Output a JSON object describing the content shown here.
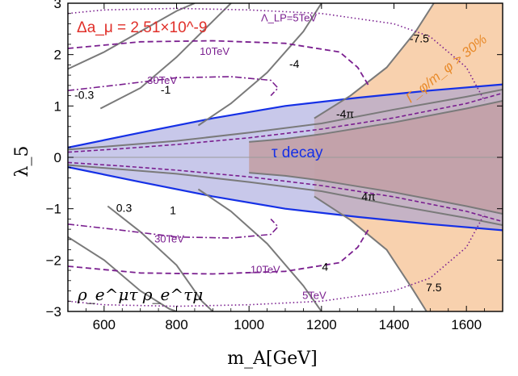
{
  "chart_data": {
    "type": "line",
    "title": "",
    "xlabel": "m_A[GeV]",
    "ylabel": "λ_5",
    "xlim": [
      500,
      1700
    ],
    "ylim": [
      -3,
      3
    ],
    "x_ticks": [
      600,
      800,
      1000,
      1200,
      1400,
      1600
    ],
    "y_ticks": [
      -3,
      -2,
      -1,
      0,
      1,
      2,
      3
    ],
    "grid": false,
    "annotations": {
      "delta_a": "Δa_μ = 2.51×10^-9",
      "width_bound": "Γ_φ/m_φ > 30%",
      "tau_decay": "τ decay",
      "couplings": "ρ_e^μτ  ρ_e^τμ"
    },
    "colors": {
      "tau_band": "#9a9ad8",
      "width_region": "#f7c9a0",
      "overlap": "#c2a0a6",
      "tau_edge": "#1530e6",
      "gray_contour": "#7a7a7a",
      "lp_contour": "#7a1f8f",
      "red_label": "#e0302a",
      "orange_label": "#e88a2a"
    },
    "contour_labels": [
      {
        "text": "-0.3",
        "x": 545,
        "y": 1.2
      },
      {
        "text": "-1",
        "x": 770,
        "y": 1.3
      },
      {
        "text": "-4",
        "x": 1125,
        "y": 1.8
      },
      {
        "text": "-7.5",
        "x": 1470,
        "y": 2.3
      },
      {
        "text": "-4π",
        "x": 1265,
        "y": 0.83
      },
      {
        "text": "0.3",
        "x": 655,
        "y": -1.0
      },
      {
        "text": "1",
        "x": 790,
        "y": -1.05
      },
      {
        "text": "4",
        "x": 1210,
        "y": -2.15
      },
      {
        "text": "7.5",
        "x": 1510,
        "y": -2.55
      },
      {
        "text": "4π",
        "x": 1330,
        "y": -0.78
      },
      {
        "text": "Λ_LP=5TeV",
        "x": 1110,
        "y": 2.7
      },
      {
        "text": "10TeV",
        "x": 905,
        "y": 2.05
      },
      {
        "text": "30TeV",
        "x": 760,
        "y": 1.48
      },
      {
        "text": "30TeV",
        "x": 780,
        "y": -1.6
      },
      {
        "text": "10TeV",
        "x": 1045,
        "y": -2.2
      },
      {
        "text": "5TeV",
        "x": 1180,
        "y": -2.7
      }
    ],
    "series": [
      {
        "x": [
          500,
          700,
          900,
          1100,
          1300,
          1500,
          1700
        ],
        "y": [
          0.19,
          0.48,
          0.76,
          1.0,
          1.16,
          1.3,
          1.42
        ]
      },
      {
        "x": [
          500,
          700,
          900,
          1100,
          1300,
          1500,
          1700
        ],
        "y": [
          -0.19,
          -0.48,
          -0.76,
          -1.0,
          -1.16,
          -1.3,
          -1.42
        ]
      },
      {
        "x": [
          500,
          800,
          1000,
          1200,
          1400,
          1600,
          1700
        ],
        "y": [
          0.15,
          0.32,
          0.48,
          0.66,
          0.93,
          1.18,
          1.32
        ]
      },
      {
        "x": [
          500,
          800,
          1000,
          1200,
          1400,
          1600,
          1700
        ],
        "y": [
          -0.15,
          -0.32,
          -0.48,
          -0.66,
          -0.93,
          -1.18,
          -1.32
        ]
      },
      {
        "x": [
          500,
          600,
          700,
          800,
          850
        ],
        "y": [
          1.72,
          2.05,
          2.45,
          2.85,
          3.0
        ]
      },
      {
        "x": [
          590,
          700,
          800,
          900,
          950
        ],
        "y": [
          0.95,
          1.35,
          1.95,
          2.65,
          3.0
        ]
      },
      {
        "x": [
          860,
          950,
          1050,
          1150,
          1200
        ],
        "y": [
          0.62,
          1.05,
          1.65,
          2.45,
          3.0
        ]
      },
      {
        "x": [
          1180,
          1280,
          1380,
          1460,
          1510
        ],
        "y": [
          0.76,
          1.2,
          1.75,
          2.45,
          3.0
        ]
      },
      {
        "x": [
          500,
          600,
          700,
          780,
          800
        ],
        "y": [
          -1.55,
          -2.0,
          -2.6,
          -2.95,
          -3.0
        ]
      },
      {
        "x": [
          610,
          700,
          800,
          870,
          900
        ],
        "y": [
          -0.95,
          -1.45,
          -2.1,
          -2.8,
          -3.0
        ]
      },
      {
        "x": [
          860,
          950,
          1050,
          1150,
          1200
        ],
        "y": [
          -0.62,
          -1.05,
          -1.68,
          -2.5,
          -3.0
        ]
      },
      {
        "x": [
          1180,
          1280,
          1380,
          1450,
          1490
        ],
        "y": [
          -0.76,
          -1.22,
          -1.8,
          -2.55,
          -3.0
        ]
      },
      {
        "x": [
          1000,
          1100,
          1200,
          1400,
          1600,
          1700
        ],
        "y": [
          0.3,
          0.36,
          0.45,
          0.68,
          0.95,
          1.1
        ]
      },
      {
        "x": [
          1000,
          1100,
          1200,
          1400,
          1600,
          1700
        ],
        "y": [
          -0.3,
          -0.36,
          -0.45,
          -0.68,
          -0.95,
          -1.1
        ]
      },
      {
        "x": [
          500,
          650,
          800,
          1000,
          1200,
          1400,
          1600,
          1700
        ],
        "y": [
          0.1,
          0.17,
          0.25,
          0.38,
          0.55,
          0.77,
          1.05,
          1.25
        ]
      },
      {
        "x": [
          500,
          650,
          800,
          1000,
          1200,
          1400,
          1600,
          1700
        ],
        "y": [
          -0.1,
          -0.17,
          -0.25,
          -0.38,
          -0.55,
          -0.77,
          -1.05,
          -1.25
        ]
      },
      {
        "x": [
          500,
          600,
          800,
          1000,
          1200,
          1400,
          1500,
          1600,
          1650
        ],
        "y": [
          2.8,
          2.87,
          2.9,
          2.87,
          2.8,
          2.6,
          2.35,
          1.75,
          1.1
        ]
      },
      {
        "x": [
          500,
          600,
          800,
          1000,
          1200,
          1400,
          1500,
          1600,
          1650
        ],
        "y": [
          -2.8,
          -2.87,
          -2.9,
          -2.87,
          -2.8,
          -2.6,
          -2.35,
          -1.75,
          -1.1
        ]
      },
      {
        "x": [
          500,
          700,
          900,
          1100,
          1250,
          1300,
          1330
        ],
        "y": [
          2.12,
          2.25,
          2.27,
          2.22,
          2.05,
          1.75,
          1.4
        ]
      },
      {
        "x": [
          500,
          700,
          900,
          1100,
          1250,
          1300,
          1330
        ],
        "y": [
          -2.12,
          -2.25,
          -2.27,
          -2.22,
          -2.05,
          -1.75,
          -1.4
        ]
      },
      {
        "x": [
          500,
          650,
          800,
          950,
          1060,
          1080,
          1060
        ],
        "y": [
          1.3,
          1.42,
          1.55,
          1.57,
          1.5,
          1.35,
          1.2
        ]
      },
      {
        "x": [
          500,
          650,
          800,
          950,
          1060,
          1080,
          1060
        ],
        "y": [
          -1.3,
          -1.42,
          -1.55,
          -1.57,
          -1.5,
          -1.35,
          -1.2
        ]
      }
    ]
  }
}
